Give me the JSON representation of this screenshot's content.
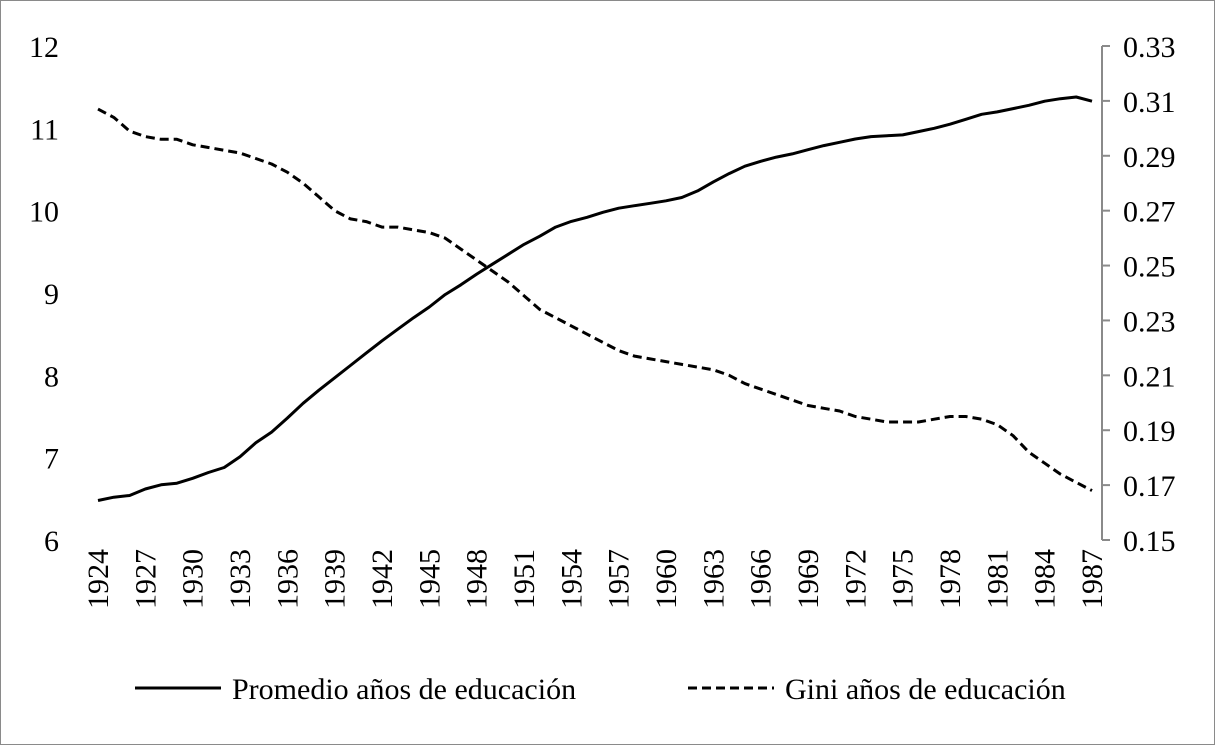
{
  "chart_data": {
    "type": "line",
    "x": [
      1924,
      1925,
      1926,
      1927,
      1928,
      1929,
      1930,
      1931,
      1932,
      1933,
      1934,
      1935,
      1936,
      1937,
      1938,
      1939,
      1940,
      1941,
      1942,
      1943,
      1944,
      1945,
      1946,
      1947,
      1948,
      1949,
      1950,
      1951,
      1952,
      1953,
      1954,
      1955,
      1956,
      1957,
      1958,
      1959,
      1960,
      1961,
      1962,
      1963,
      1964,
      1965,
      1966,
      1967,
      1968,
      1969,
      1970,
      1971,
      1972,
      1973,
      1974,
      1975,
      1976,
      1977,
      1978,
      1979,
      1980,
      1981,
      1982,
      1983,
      1984,
      1985,
      1986,
      1987
    ],
    "x_tick_labels": [
      "1924",
      "1927",
      "1930",
      "1933",
      "1936",
      "1939",
      "1942",
      "1945",
      "1948",
      "1951",
      "1954",
      "1957",
      "1960",
      "1963",
      "1966",
      "1969",
      "1972",
      "1975",
      "1978",
      "1981",
      "1984",
      "1987"
    ],
    "y_left_ticks": [
      "6",
      "7",
      "8",
      "9",
      "10",
      "11",
      "12"
    ],
    "y_right_ticks": [
      "0.15",
      "0.17",
      "0.19",
      "0.21",
      "0.23",
      "0.25",
      "0.27",
      "0.29",
      "0.31",
      "0.33"
    ],
    "ylim_left": [
      6,
      12
    ],
    "ylim_right": [
      0.15,
      0.33
    ],
    "legend_position": "bottom",
    "grid": false,
    "series": [
      {
        "name": "Promedio años de educación",
        "axis": "left",
        "style": "solid",
        "color": "#000000",
        "values": [
          6.48,
          6.52,
          6.54,
          6.62,
          6.67,
          6.69,
          6.75,
          6.82,
          6.88,
          7.01,
          7.18,
          7.31,
          7.48,
          7.66,
          7.82,
          7.97,
          8.12,
          8.27,
          8.42,
          8.56,
          8.7,
          8.83,
          8.98,
          9.1,
          9.23,
          9.35,
          9.47,
          9.59,
          9.69,
          9.8,
          9.87,
          9.92,
          9.98,
          10.03,
          10.06,
          10.09,
          10.12,
          10.16,
          10.24,
          10.35,
          10.45,
          10.54,
          10.6,
          10.65,
          10.69,
          10.74,
          10.79,
          10.83,
          10.87,
          10.9,
          10.91,
          10.92,
          10.96,
          11.0,
          11.05,
          11.11,
          11.17,
          11.2,
          11.24,
          11.28,
          11.33,
          11.36,
          11.38,
          11.33
        ]
      },
      {
        "name": "Gini años de educación",
        "axis": "right",
        "style": "dashed",
        "color": "#000000",
        "values": [
          0.307,
          0.304,
          0.299,
          0.297,
          0.296,
          0.296,
          0.294,
          0.293,
          0.292,
          0.291,
          0.289,
          0.287,
          0.284,
          0.28,
          0.275,
          0.27,
          0.267,
          0.266,
          0.264,
          0.264,
          0.263,
          0.262,
          0.26,
          0.256,
          0.252,
          0.248,
          0.244,
          0.239,
          0.234,
          0.231,
          0.228,
          0.225,
          0.222,
          0.219,
          0.217,
          0.216,
          0.215,
          0.214,
          0.213,
          0.212,
          0.21,
          0.207,
          0.205,
          0.203,
          0.201,
          0.199,
          0.198,
          0.197,
          0.195,
          0.194,
          0.193,
          0.193,
          0.193,
          0.194,
          0.195,
          0.195,
          0.194,
          0.192,
          0.188,
          0.182,
          0.178,
          0.174,
          0.171,
          0.168
        ]
      }
    ]
  }
}
